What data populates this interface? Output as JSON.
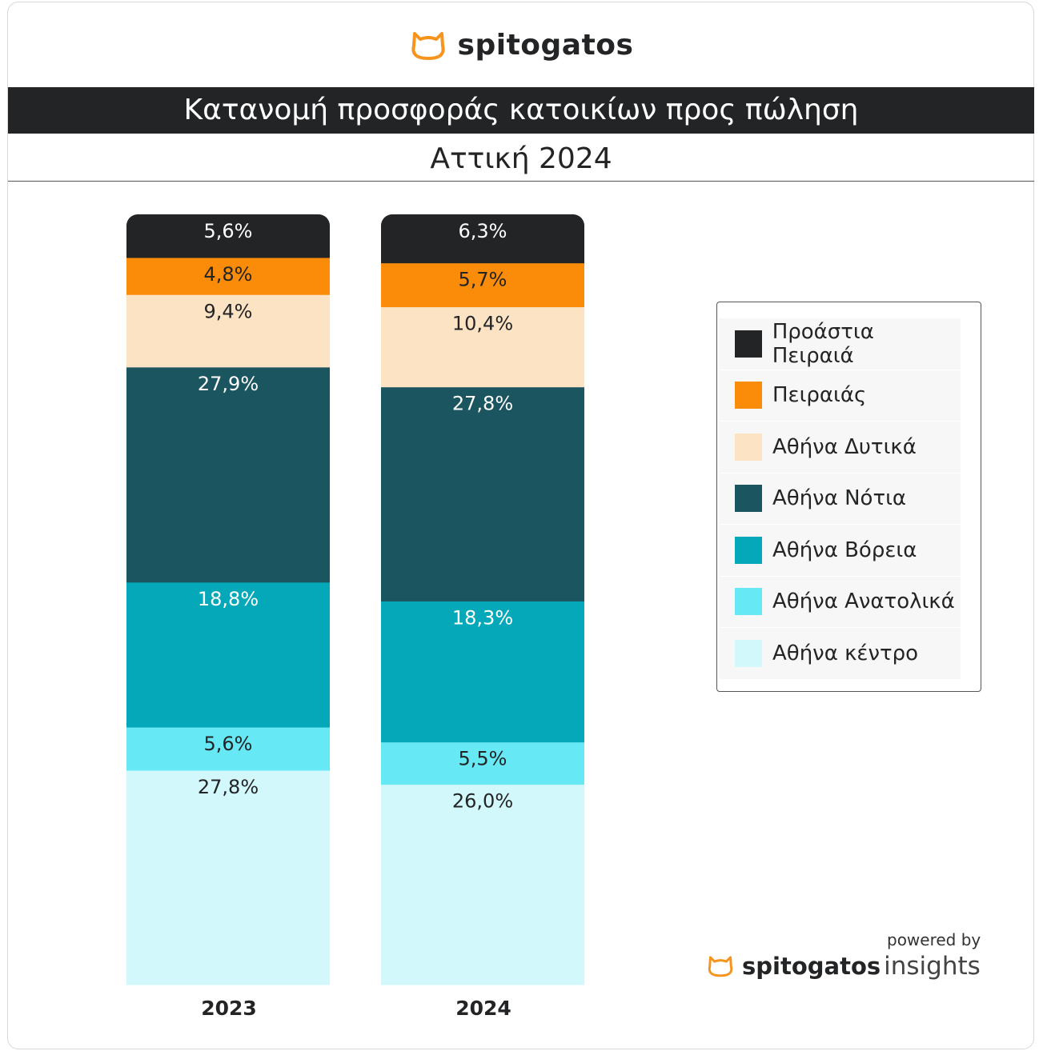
{
  "brand": "spitogatos",
  "title": "Κατανομή προσφοράς κατοικίων προς πώληση",
  "subtitle": "Αττική 2024",
  "footer": {
    "powered": "powered by",
    "brand": "spitogatos",
    "product": "insights"
  },
  "chart_data": {
    "type": "bar",
    "stacked": true,
    "title": "Κατανομή προσφοράς κατοικίων προς πώληση",
    "subtitle": "Αττική 2024",
    "categories": [
      "2023",
      "2024"
    ],
    "ylim": [
      0,
      100
    ],
    "legend_position": "right",
    "series": [
      {
        "name": "Αθήνα κέντρο",
        "color": "#d3f8fc",
        "text": "#232426",
        "values": [
          27.8,
          26.0
        ],
        "labels": [
          "27,8%",
          "26,0%"
        ]
      },
      {
        "name": "Αθήνα Ανατολικά",
        "color": "#67e8f5",
        "text": "#232426",
        "values": [
          5.6,
          5.5
        ],
        "labels": [
          "5,6%",
          "5,5%"
        ]
      },
      {
        "name": "Αθήνα Βόρεια",
        "color": "#05a8b8",
        "text": "#ffffff",
        "values": [
          18.8,
          18.3
        ],
        "labels": [
          "18,8%",
          "18,3%"
        ]
      },
      {
        "name": "Αθήνα Νότια",
        "color": "#1b5560",
        "text": "#ffffff",
        "values": [
          27.9,
          27.8
        ],
        "labels": [
          "27,9%",
          "27,8%"
        ]
      },
      {
        "name": "Αθήνα Δυτικά",
        "color": "#fbe3c4",
        "text": "#232426",
        "values": [
          9.4,
          10.4
        ],
        "labels": [
          "9,4%",
          "10,4%"
        ]
      },
      {
        "name": "Πειραιάς",
        "color": "#fb8c0a",
        "text": "#232426",
        "values": [
          4.8,
          5.7
        ],
        "labels": [
          "4,8%",
          "5,7%"
        ]
      },
      {
        "name": "Προάστια Πειραιά",
        "color": "#232426",
        "text": "#ffffff",
        "values": [
          5.6,
          6.3
        ],
        "labels": [
          "5,6%",
          "6,3%"
        ]
      }
    ]
  }
}
